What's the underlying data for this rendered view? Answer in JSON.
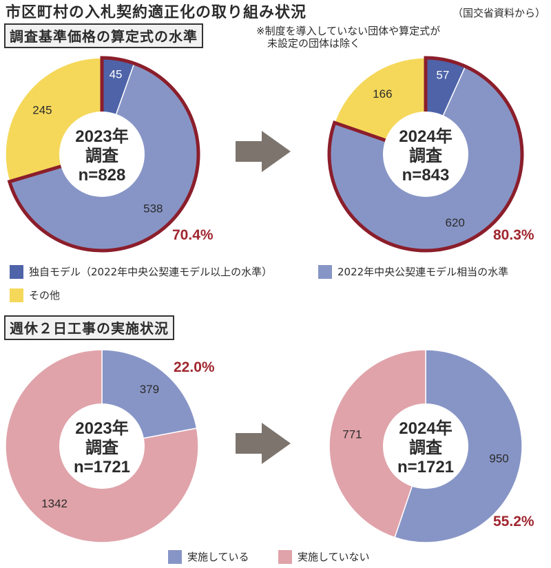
{
  "title": "市区町村の入札契約適正化の取り組み状況",
  "source": "（国交省資料から）",
  "section1": {
    "label": "調査基準価格の算定式の水準",
    "note_line1": "※制度を導入していない団体や算定式が",
    "note_line2": "未設定の団体は除く",
    "legend": [
      {
        "label": "独自モデル（2022年中央公契連モデル以上の水準）",
        "color": "#4e63a8"
      },
      {
        "label": "2022年中央公契連モデル相当の水準",
        "color": "#8795c6"
      },
      {
        "label": "その他",
        "color": "#f5d85a"
      }
    ]
  },
  "section2": {
    "label": "週休２日工事の実施状況",
    "legend": [
      {
        "label": "実施している",
        "color": "#8795c6"
      },
      {
        "label": "実施していない",
        "color": "#e0a3aa"
      }
    ]
  },
  "colors": {
    "highlight": "#8b1e2b",
    "pct_text": "#a0262f"
  },
  "chart_data": [
    {
      "type": "pie",
      "center_label": [
        "2023年",
        "調査",
        "n=828"
      ],
      "categories": [
        "独自モデル（2022年中央公契連モデル以上の水準）",
        "2022年中央公契連モデル相当の水準",
        "その他"
      ],
      "values": [
        45,
        538,
        245
      ],
      "colors": [
        "#4e63a8",
        "#8795c6",
        "#f5d85a"
      ],
      "highlighted": [
        0,
        1
      ],
      "annotation": "70.4%"
    },
    {
      "type": "pie",
      "center_label": [
        "2024年",
        "調査",
        "n=843"
      ],
      "categories": [
        "独自モデル（2022年中央公契連モデル以上の水準）",
        "2022年中央公契連モデル相当の水準",
        "その他"
      ],
      "values": [
        57,
        620,
        166
      ],
      "colors": [
        "#4e63a8",
        "#8795c6",
        "#f5d85a"
      ],
      "highlighted": [
        0,
        1
      ],
      "annotation": "80.3%"
    },
    {
      "type": "pie",
      "center_label": [
        "2023年",
        "調査",
        "n=1721"
      ],
      "categories": [
        "実施している",
        "実施していない"
      ],
      "values": [
        379,
        1342
      ],
      "colors": [
        "#8795c6",
        "#e0a3aa"
      ],
      "highlighted": [],
      "annotation": "22.0%"
    },
    {
      "type": "pie",
      "center_label": [
        "2024年",
        "調査",
        "n=1721"
      ],
      "categories": [
        "実施している",
        "実施していない"
      ],
      "values": [
        950,
        771
      ],
      "colors": [
        "#8795c6",
        "#e0a3aa"
      ],
      "highlighted": [],
      "annotation": "55.2%"
    }
  ]
}
